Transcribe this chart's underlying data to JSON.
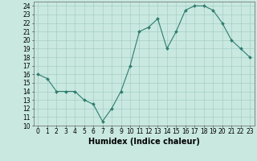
{
  "x": [
    0,
    1,
    2,
    3,
    4,
    5,
    6,
    7,
    8,
    9,
    10,
    11,
    12,
    13,
    14,
    15,
    16,
    17,
    18,
    19,
    20,
    21,
    22,
    23
  ],
  "y": [
    16,
    15.5,
    14,
    14,
    14,
    13,
    12.5,
    10.5,
    12,
    14,
    17,
    21,
    21.5,
    22.5,
    19,
    21,
    23.5,
    24,
    24,
    23.5,
    22,
    20,
    19,
    18
  ],
  "line_color": "#2e7d6e",
  "marker_color": "#2e7d6e",
  "bg_color": "#c8e8e0",
  "grid_color": "#a0c8c0",
  "xlabel": "Humidex (Indice chaleur)",
  "xlim": [
    -0.5,
    23.5
  ],
  "ylim": [
    10,
    24.5
  ],
  "yticks": [
    10,
    11,
    12,
    13,
    14,
    15,
    16,
    17,
    18,
    19,
    20,
    21,
    22,
    23,
    24
  ],
  "xticks": [
    0,
    1,
    2,
    3,
    4,
    5,
    6,
    7,
    8,
    9,
    10,
    11,
    12,
    13,
    14,
    15,
    16,
    17,
    18,
    19,
    20,
    21,
    22,
    23
  ],
  "tick_fontsize": 5.5,
  "xlabel_fontsize": 7,
  "marker_size": 2.0,
  "line_width": 0.8
}
